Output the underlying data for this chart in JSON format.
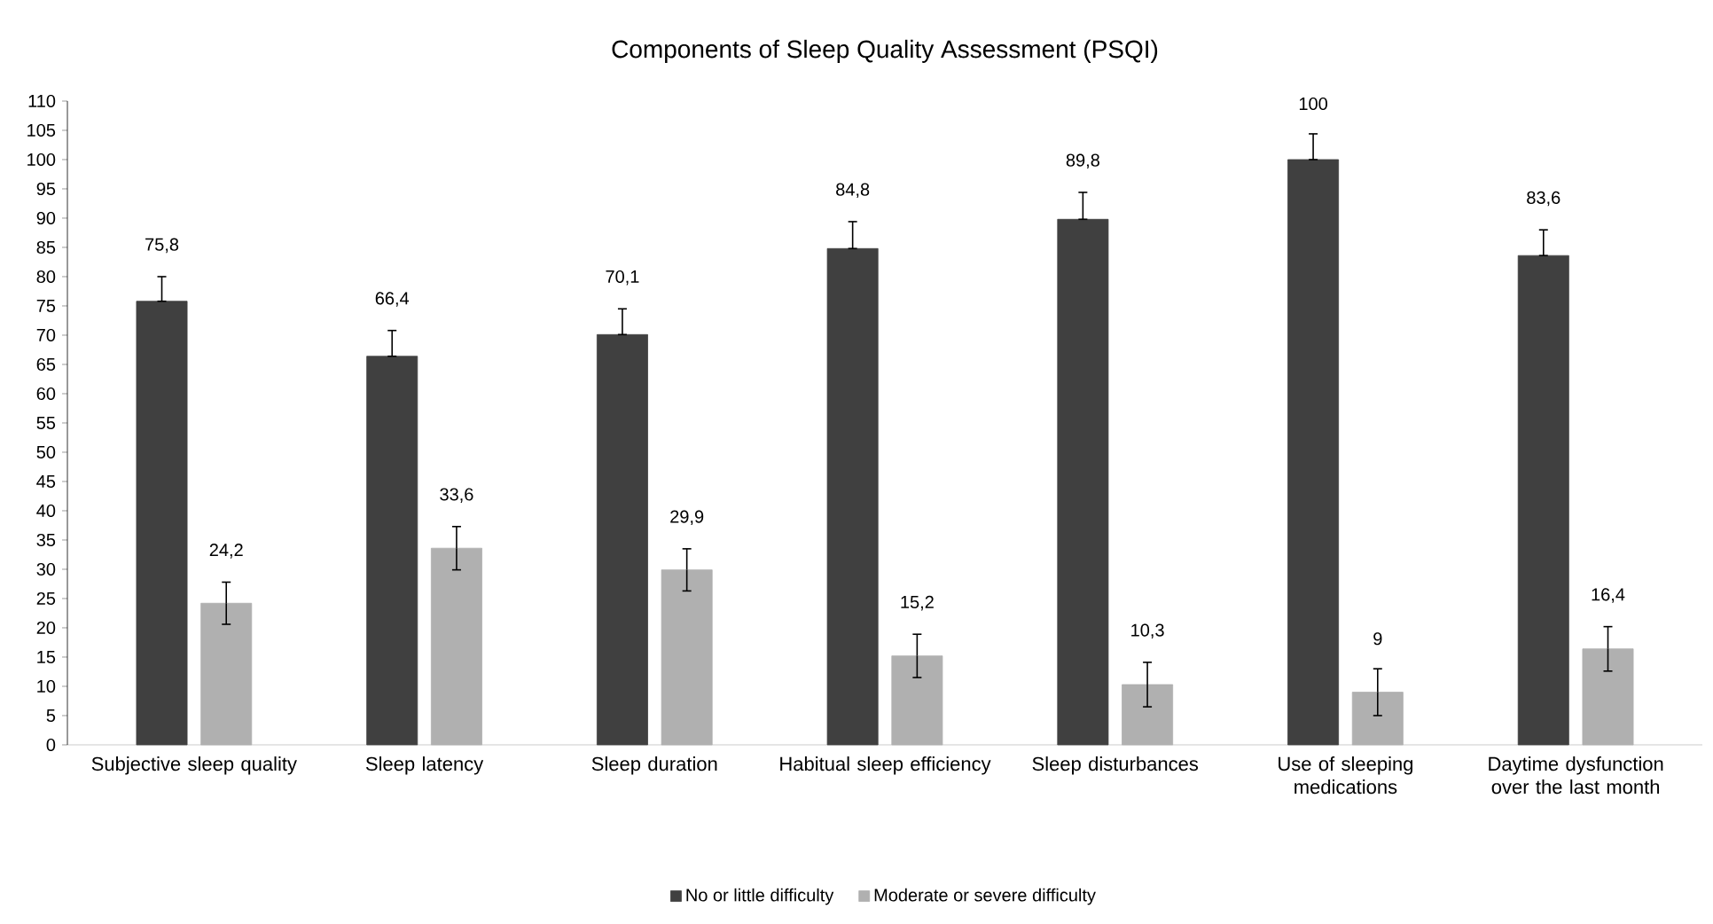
{
  "chart_data": {
    "type": "bar",
    "title": "Components of Sleep Quality Assessment (PSQI)",
    "categories": [
      "Subjective sleep quality",
      "Sleep latency",
      "Sleep duration",
      "Habitual sleep efficiency",
      "Sleep disturbances",
      "Use of sleeping medications",
      "Daytime dysfunction over the last month"
    ],
    "series": [
      {
        "name": "No or little difficulty",
        "color": "#404040",
        "values": [
          75.8,
          66.4,
          70.1,
          84.8,
          89.8,
          100,
          83.6
        ],
        "value_labels": [
          "75,8",
          "66,4",
          "70,1",
          "84,8",
          "89,8",
          "100",
          "83,6"
        ],
        "errors": [
          [
            75.8,
            80
          ],
          [
            66.4,
            70.8
          ],
          [
            70.1,
            74.5
          ],
          [
            84.8,
            89.4
          ],
          [
            89.8,
            94.4
          ],
          [
            100,
            104.4
          ],
          [
            83.6,
            88
          ]
        ]
      },
      {
        "name": "Moderate or severe difficulty",
        "color": "#b0b0b0",
        "values": [
          24.2,
          33.6,
          29.9,
          15.2,
          10.3,
          9,
          16.4
        ],
        "value_labels": [
          "24,2",
          "33,6",
          "29,9",
          "15,2",
          "10,3",
          "9",
          "16,4"
        ],
        "errors": [
          3.6,
          3.7,
          3.6,
          3.7,
          3.8,
          4,
          3.8
        ]
      }
    ],
    "ylim": [
      0,
      110
    ],
    "yticks": [
      0,
      5,
      10,
      15,
      20,
      25,
      30,
      35,
      40,
      45,
      50,
      55,
      60,
      65,
      70,
      75,
      80,
      85,
      90,
      95,
      100,
      105,
      110
    ],
    "grid": false,
    "legend": "bottom"
  }
}
